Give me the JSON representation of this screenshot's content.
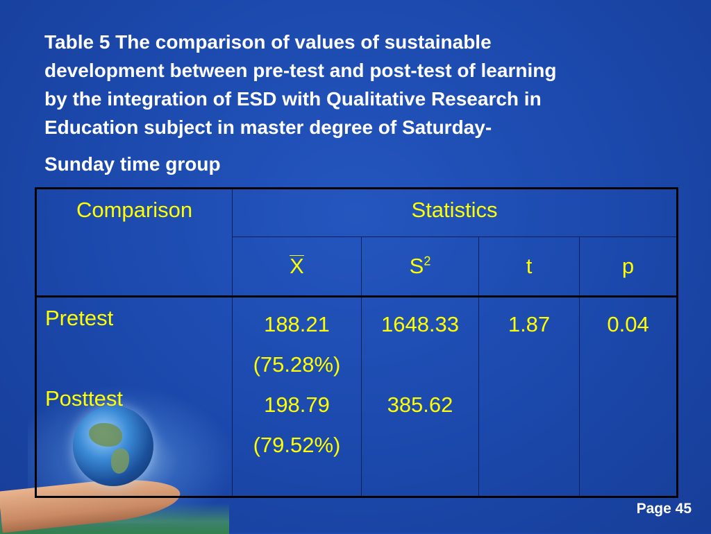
{
  "title": {
    "lines": [
      "Table  5   The comparison of values of sustainable",
      "development between pre-test and post-test of learning",
      "by the integration of ESD with Qualitative Research in",
      "Education subject in master degree of Saturday-",
      "Sunday time group"
    ]
  },
  "table": {
    "header": {
      "comparison": "Comparison",
      "statistics": "Statistics",
      "mean_symbol": "X",
      "variance_symbol": "S",
      "variance_exponent": "2",
      "t": "t",
      "p": "p"
    },
    "rows": {
      "pretest_label": "Pretest",
      "posttest_label": "Posttest",
      "pretest_mean": "188.21",
      "pretest_mean_pct": "(75.28%)",
      "posttest_mean": "198.79",
      "posttest_mean_pct": "(79.52%)",
      "pretest_variance": "1648.33",
      "posttest_variance": "385.62",
      "t_value": "1.87",
      "p_value": "0.04"
    }
  },
  "footer": {
    "page": "Page 45"
  },
  "colors": {
    "background": "#1b48ab",
    "title_text": "#ffffff",
    "table_text": "#ffff00"
  },
  "decoration": {
    "illustration": "globe-in-hand"
  }
}
